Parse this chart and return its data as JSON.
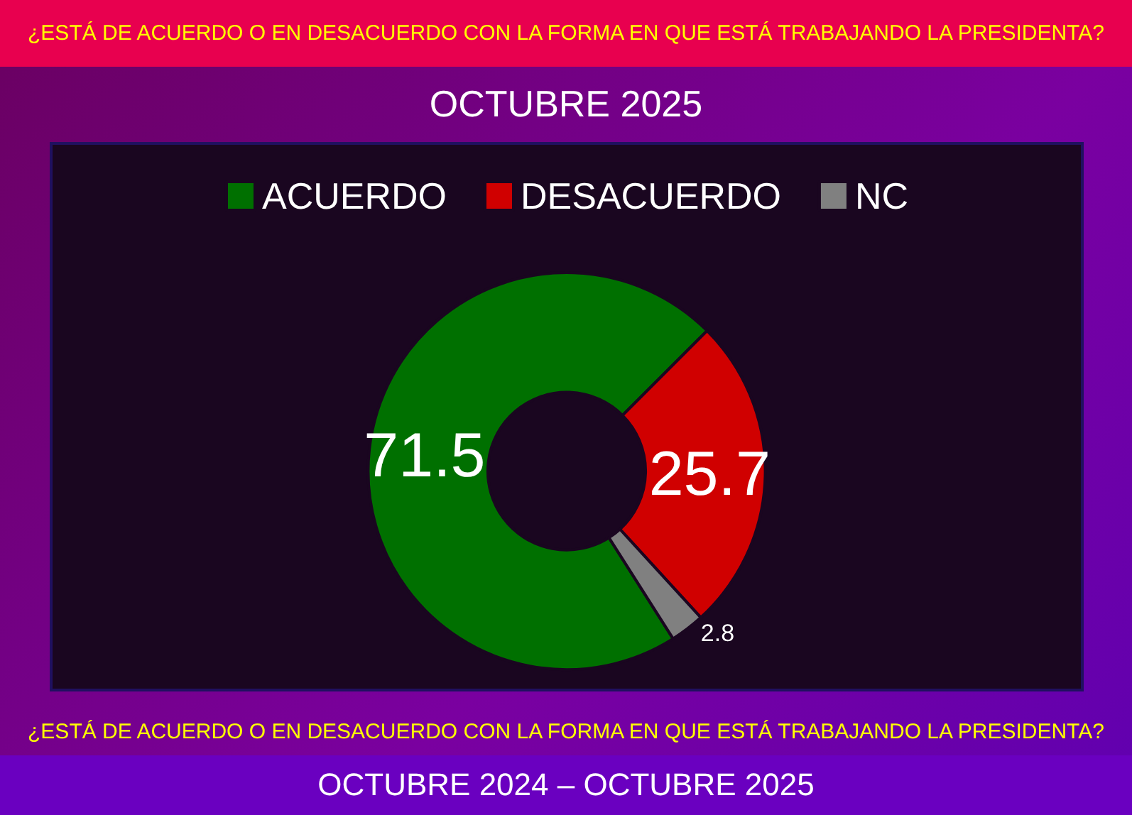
{
  "chart_data": {
    "type": "donut",
    "title": "¿ESTÁ DE ACUERDO O EN DESACUERDO CON LA FORMA EN QUE ESTÁ TRABAJANDO LA PRESIDENTA?",
    "subtitle": "OCTUBRE 2025",
    "categories": [
      "ACUERDO",
      "DESACUERDO",
      "NC"
    ],
    "values": [
      71.5,
      25.7,
      2.8
    ],
    "colors": [
      "#007000",
      "#d00000",
      "#808080"
    ],
    "data_labels": true,
    "legend": "top",
    "annotations": [
      "¿ESTÁ DE ACUERDO O EN DESACUERDO CON LA FORMA EN QUE ESTÁ TRABAJANDO LA PRESIDENTA?",
      "OCTUBRE 2024 – OCTUBRE 2025"
    ]
  }
}
